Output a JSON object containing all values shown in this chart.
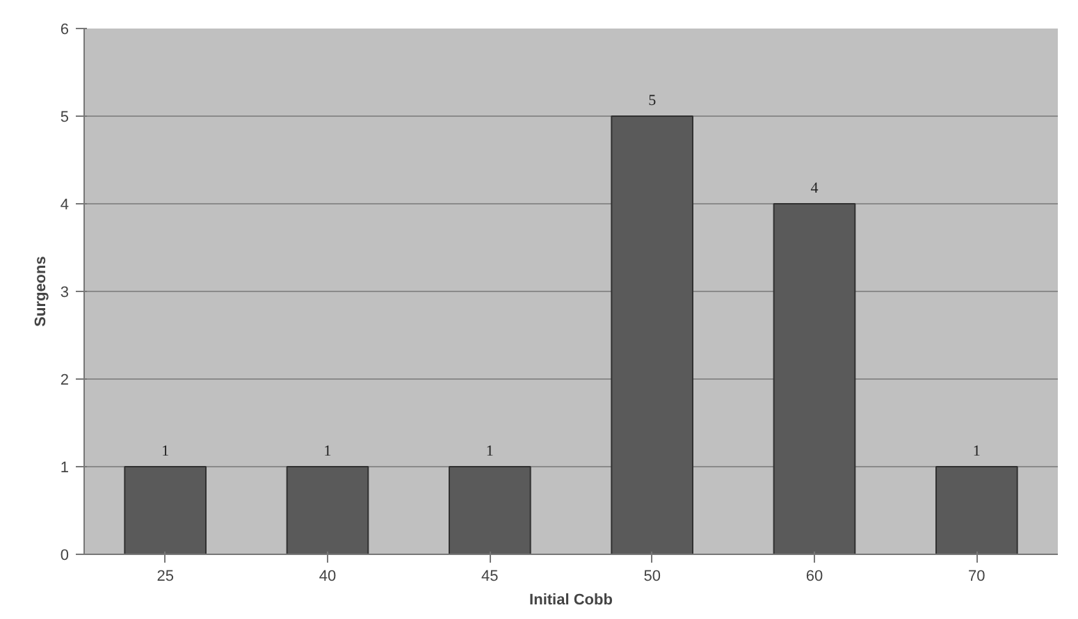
{
  "chart_data": {
    "type": "bar",
    "xlabel": "Initial Cobb",
    "ylabel": "Surgeons",
    "categories": [
      "25",
      "40",
      "45",
      "50",
      "60",
      "70"
    ],
    "values": [
      1,
      1,
      1,
      5,
      4,
      1
    ],
    "color": "#5a5a5a",
    "ylim": [
      0,
      6
    ],
    "yticks": [
      0,
      1,
      2,
      3,
      4,
      5,
      6
    ],
    "grid": "y",
    "data_labels": true
  }
}
